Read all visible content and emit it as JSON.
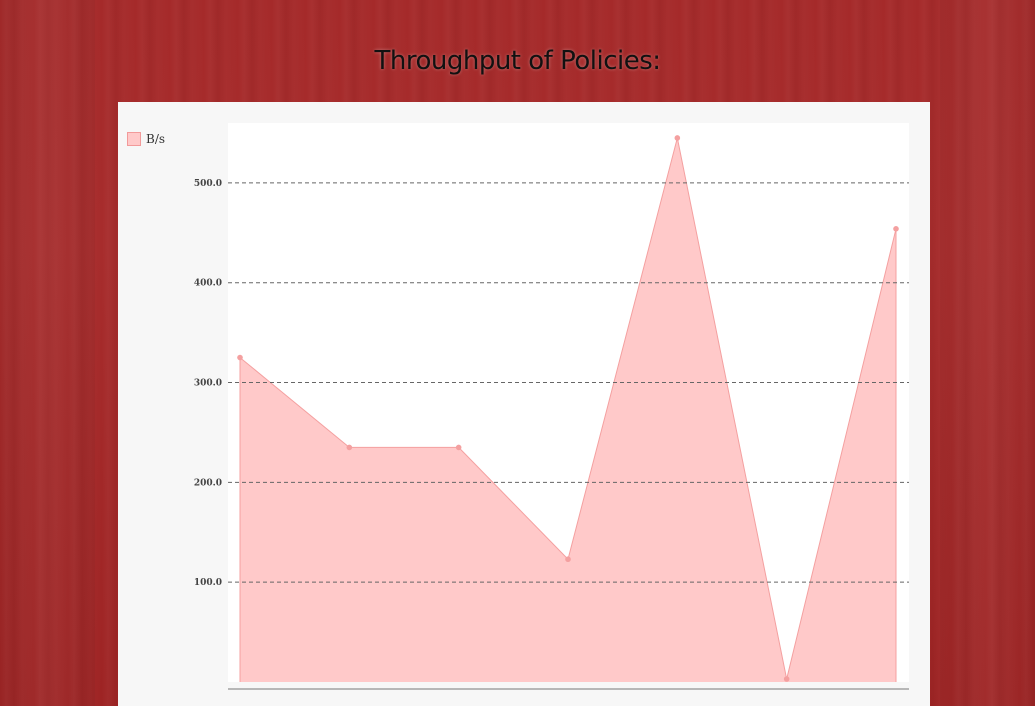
{
  "page": {
    "title": "Throughput of Policies:"
  },
  "legend": {
    "label": "B/s",
    "color": "#ffc9c9",
    "border_color": "#f29a9a"
  },
  "chart_data": {
    "type": "area",
    "title": "Throughput of Policies:",
    "xlabel": "",
    "ylabel": "",
    "ylim": [
      0,
      560
    ],
    "y_ticks": [
      "100.0",
      "200.0",
      "300.0",
      "400.0",
      "500.0"
    ],
    "grid": "dashed horizontal",
    "legend_position": "top-left",
    "series": [
      {
        "name": "B/s",
        "color": "#f4a0a0",
        "fill": "#ffc9c9",
        "values": [
          325,
          235,
          235,
          123,
          545,
          3,
          454
        ]
      }
    ]
  }
}
